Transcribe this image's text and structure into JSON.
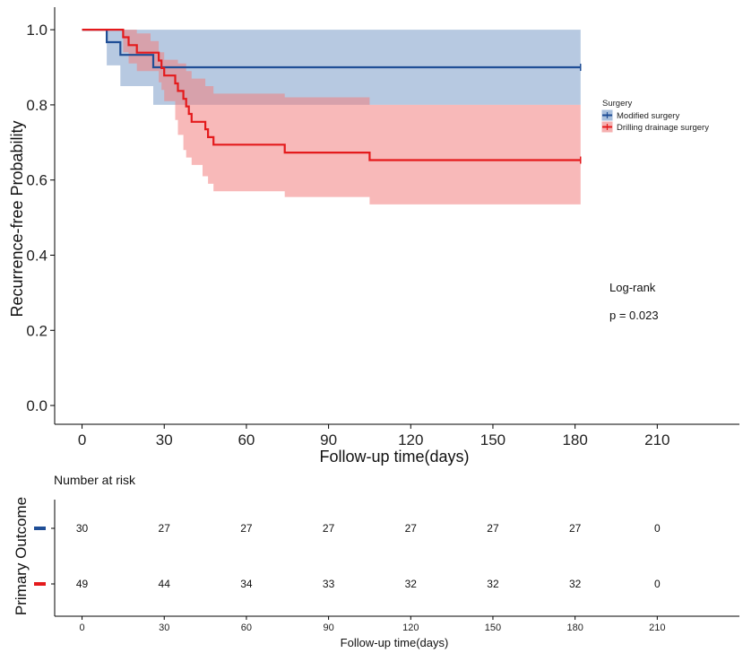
{
  "chart_data": {
    "type": "line",
    "subtype": "kaplan-meier",
    "xlabel": "Follow-up time(days)",
    "ylabel": "Recurrence-free Probability",
    "xticks": [
      0,
      30,
      60,
      90,
      120,
      150,
      180,
      210
    ],
    "yticks": [
      0.0,
      0.2,
      0.4,
      0.6,
      0.8,
      1.0
    ],
    "ytick_labels": [
      "0.0",
      "0.2",
      "0.4",
      "0.6",
      "0.8",
      "1.0"
    ],
    "xlim": [
      -10,
      240
    ],
    "ylim": [
      -0.05,
      1.06
    ],
    "legend": {
      "title": "Surgery",
      "position": "right",
      "entries": [
        "Modified surgery",
        "Drilling drainage surgery"
      ]
    },
    "annotation": {
      "line1": "Log-rank",
      "line2": "p = 0.023"
    },
    "series": [
      {
        "name": "Modified surgery",
        "color": "#1f4e96",
        "ci_color": "#7b9cc8",
        "steps": [
          [
            0,
            1.0
          ],
          [
            9,
            0.967
          ],
          [
            14,
            0.933
          ],
          [
            26,
            0.9
          ],
          [
            182,
            0.9
          ]
        ],
        "ci_upper": [
          [
            0,
            1.0
          ],
          [
            182,
            1.0
          ]
        ],
        "ci_lower": [
          [
            0,
            1.0
          ],
          [
            9,
            0.905
          ],
          [
            14,
            0.85
          ],
          [
            26,
            0.8
          ],
          [
            27,
            0.8
          ],
          [
            182,
            0.8
          ]
        ]
      },
      {
        "name": "Drilling drainage surgery",
        "color": "#e41a1c",
        "ci_color": "#f28080",
        "steps": [
          [
            0,
            1.0
          ],
          [
            15,
            0.98
          ],
          [
            17,
            0.959
          ],
          [
            20,
            0.939
          ],
          [
            28,
            0.918
          ],
          [
            29,
            0.898
          ],
          [
            30,
            0.878
          ],
          [
            34,
            0.857
          ],
          [
            35,
            0.837
          ],
          [
            37,
            0.816
          ],
          [
            38,
            0.796
          ],
          [
            39,
            0.776
          ],
          [
            40,
            0.755
          ],
          [
            45,
            0.735
          ],
          [
            46,
            0.714
          ],
          [
            48,
            0.694
          ],
          [
            74,
            0.673
          ],
          [
            105,
            0.653
          ],
          [
            182,
            0.653
          ]
        ],
        "ci_upper": [
          [
            0,
            1.0
          ],
          [
            15,
            1.0
          ],
          [
            20,
            0.99
          ],
          [
            25,
            0.97
          ],
          [
            28,
            0.94
          ],
          [
            30,
            0.92
          ],
          [
            35,
            0.91
          ],
          [
            38,
            0.89
          ],
          [
            40,
            0.87
          ],
          [
            45,
            0.85
          ],
          [
            48,
            0.83
          ],
          [
            74,
            0.82
          ],
          [
            105,
            0.8
          ],
          [
            182,
            0.8
          ]
        ],
        "ci_lower": [
          [
            0,
            1.0
          ],
          [
            15,
            0.94
          ],
          [
            17,
            0.91
          ],
          [
            20,
            0.89
          ],
          [
            28,
            0.86
          ],
          [
            29,
            0.84
          ],
          [
            30,
            0.81
          ],
          [
            34,
            0.76
          ],
          [
            35,
            0.72
          ],
          [
            37,
            0.68
          ],
          [
            38,
            0.66
          ],
          [
            40,
            0.64
          ],
          [
            44,
            0.61
          ],
          [
            46,
            0.59
          ],
          [
            48,
            0.57
          ],
          [
            74,
            0.555
          ],
          [
            105,
            0.535
          ],
          [
            182,
            0.535
          ]
        ]
      }
    ],
    "censor_marks": [
      {
        "series": 0,
        "x": 182,
        "y": 0.9
      },
      {
        "series": 1,
        "x": 182,
        "y": 0.653
      }
    ]
  },
  "risk_table": {
    "title": "Number at risk",
    "ylabel": "Primary Outcome",
    "xlabel": "Follow-up time(days)",
    "times": [
      0,
      30,
      60,
      90,
      120,
      150,
      180,
      210
    ],
    "rows": [
      {
        "color": "#1f4e96",
        "counts": [
          "30",
          "27",
          "27",
          "27",
          "27",
          "27",
          "27",
          "0"
        ]
      },
      {
        "color": "#e41a1c",
        "counts": [
          "49",
          "44",
          "34",
          "33",
          "32",
          "32",
          "32",
          "0"
        ]
      }
    ]
  }
}
